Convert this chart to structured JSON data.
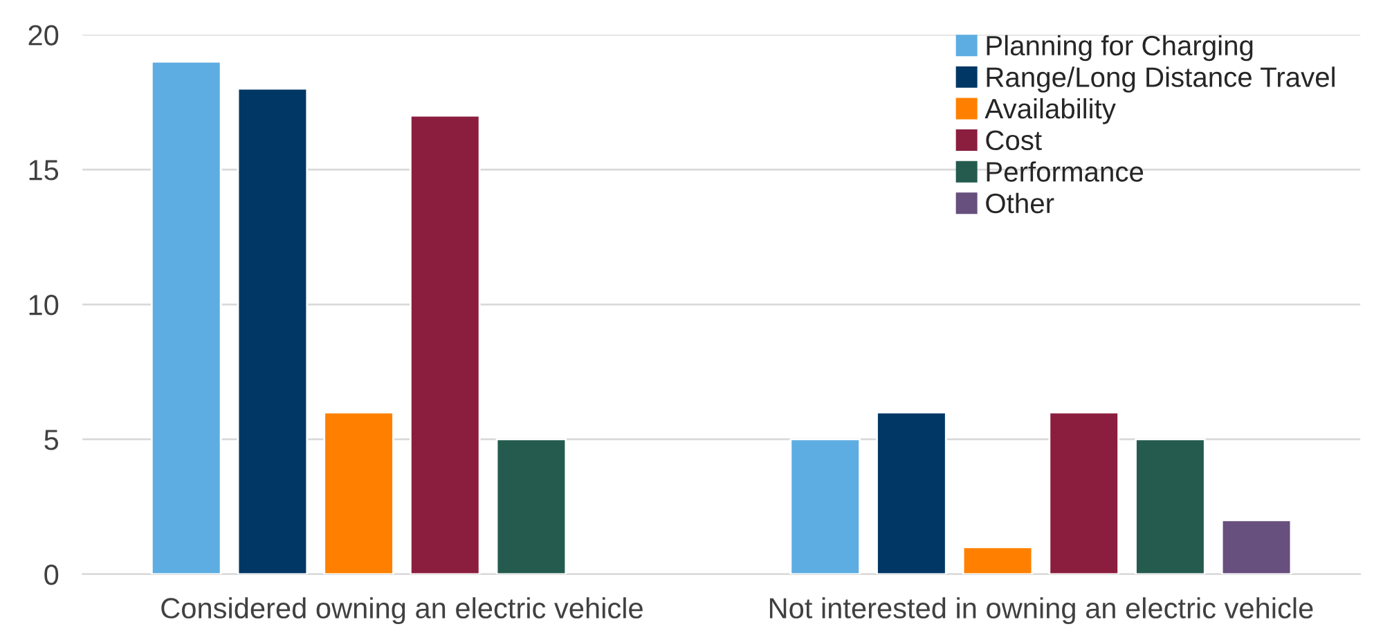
{
  "chart_data": {
    "type": "bar",
    "categories": [
      "Considered owning an electric vehicle",
      "Not interested in owning an electric vehicle"
    ],
    "series": [
      {
        "name": "Planning for Charging",
        "color": "#5dade2",
        "values": [
          19,
          5
        ]
      },
      {
        "name": "Range/Long Distance Travel",
        "color": "#003764",
        "values": [
          18,
          6
        ]
      },
      {
        "name": "Availability",
        "color": "#ff8000",
        "values": [
          6,
          1
        ]
      },
      {
        "name": "Cost",
        "color": "#8b1e3f",
        "values": [
          17,
          6
        ]
      },
      {
        "name": "Performance",
        "color": "#245b4e",
        "values": [
          5,
          5
        ]
      },
      {
        "name": "Other",
        "color": "#674f7e",
        "values": [
          null,
          2
        ]
      }
    ],
    "ylim": [
      0,
      20
    ],
    "yticks": [
      0,
      5,
      10,
      15,
      20
    ],
    "grid": "y",
    "legend": "top right"
  }
}
